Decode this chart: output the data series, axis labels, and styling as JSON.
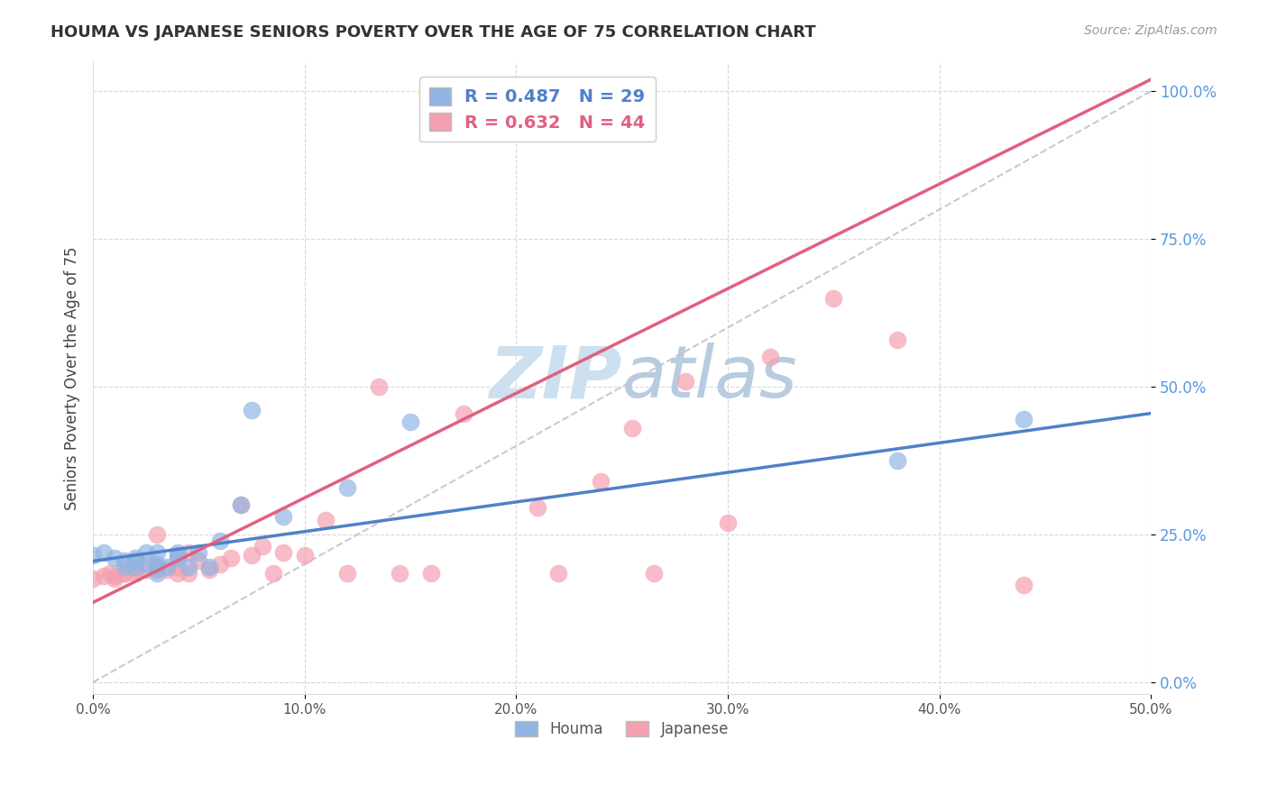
{
  "title": "HOUMA VS JAPANESE SENIORS POVERTY OVER THE AGE OF 75 CORRELATION CHART",
  "source_text": "Source: ZipAtlas.com",
  "ylabel": "Seniors Poverty Over the Age of 75",
  "xlim": [
    0.0,
    0.5
  ],
  "ylim": [
    -0.02,
    1.05
  ],
  "yticks": [
    0.0,
    0.25,
    0.5,
    0.75,
    1.0
  ],
  "ytick_labels": [
    "0.0%",
    "25.0%",
    "50.0%",
    "75.0%",
    "100.0%"
  ],
  "xticks": [
    0.0,
    0.1,
    0.2,
    0.3,
    0.4,
    0.5
  ],
  "xtick_labels": [
    "0.0%",
    "10.0%",
    "20.0%",
    "30.0%",
    "40.0%",
    "50.0%"
  ],
  "houma_R": 0.487,
  "houma_N": 29,
  "japanese_R": 0.632,
  "japanese_N": 44,
  "houma_color": "#92b4e3",
  "japanese_color": "#f4a0b0",
  "houma_line_color": "#5080c8",
  "japanese_line_color": "#e06080",
  "ref_line_color": "#c8c0d0",
  "watermark_color": "#cce0f0",
  "houma_scatter_x": [
    0.0,
    0.005,
    0.01,
    0.015,
    0.015,
    0.02,
    0.02,
    0.02,
    0.025,
    0.025,
    0.03,
    0.03,
    0.03,
    0.03,
    0.035,
    0.04,
    0.04,
    0.04,
    0.045,
    0.05,
    0.055,
    0.06,
    0.07,
    0.075,
    0.09,
    0.12,
    0.15,
    0.38,
    0.44
  ],
  "houma_scatter_y": [
    0.215,
    0.22,
    0.21,
    0.195,
    0.205,
    0.21,
    0.205,
    0.195,
    0.2,
    0.22,
    0.195,
    0.2,
    0.22,
    0.185,
    0.195,
    0.21,
    0.215,
    0.22,
    0.195,
    0.22,
    0.195,
    0.24,
    0.3,
    0.46,
    0.28,
    0.33,
    0.44,
    0.375,
    0.445
  ],
  "japanese_scatter_x": [
    0.0,
    0.005,
    0.008,
    0.01,
    0.01,
    0.015,
    0.015,
    0.02,
    0.02,
    0.025,
    0.03,
    0.03,
    0.035,
    0.04,
    0.04,
    0.045,
    0.045,
    0.05,
    0.055,
    0.06,
    0.065,
    0.07,
    0.075,
    0.08,
    0.085,
    0.09,
    0.1,
    0.11,
    0.12,
    0.135,
    0.145,
    0.16,
    0.175,
    0.21,
    0.22,
    0.24,
    0.255,
    0.265,
    0.28,
    0.3,
    0.32,
    0.35,
    0.38,
    0.44
  ],
  "japanese_scatter_y": [
    0.175,
    0.18,
    0.185,
    0.175,
    0.18,
    0.185,
    0.185,
    0.185,
    0.19,
    0.19,
    0.19,
    0.25,
    0.19,
    0.185,
    0.195,
    0.185,
    0.22,
    0.205,
    0.19,
    0.2,
    0.21,
    0.3,
    0.215,
    0.23,
    0.185,
    0.22,
    0.215,
    0.275,
    0.185,
    0.5,
    0.185,
    0.185,
    0.455,
    0.295,
    0.185,
    0.34,
    0.43,
    0.185,
    0.51,
    0.27,
    0.55,
    0.65,
    0.58,
    0.165
  ]
}
